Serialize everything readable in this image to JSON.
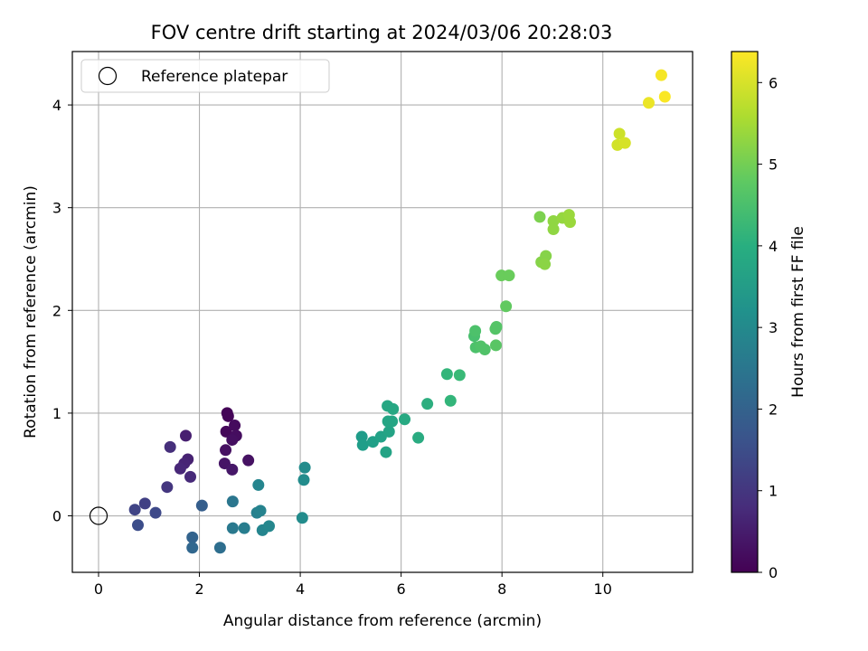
{
  "chart_data": {
    "type": "scatter",
    "title": "FOV centre drift starting at 2024/03/06 20:28:03",
    "xlabel": "Angular distance from reference (arcmin)",
    "ylabel": "Rotation from reference (arcmin)",
    "xlim": [
      -0.52,
      11.78
    ],
    "ylim": [
      -0.55,
      4.52
    ],
    "xticks": [
      0,
      2,
      4,
      6,
      8,
      10
    ],
    "yticks": [
      0,
      1,
      2,
      3,
      4
    ],
    "grid": true,
    "legend": {
      "placement": "top-left",
      "entries": [
        "Reference platepar"
      ]
    },
    "reference_point": {
      "x": 0,
      "y": 0,
      "marker": "open-circle"
    },
    "colorbar": {
      "label": "Hours from first FF file",
      "range": [
        0,
        6.38
      ],
      "ticks": [
        0,
        1,
        2,
        3,
        4,
        5,
        6
      ],
      "colormap": "viridis"
    },
    "points": [
      {
        "x": 2.55,
        "y": 1.0,
        "h": 0.05
      },
      {
        "x": 2.57,
        "y": 0.97,
        "h": 0.08
      },
      {
        "x": 2.53,
        "y": 0.82,
        "h": 0.12
      },
      {
        "x": 2.7,
        "y": 0.88,
        "h": 0.18
      },
      {
        "x": 2.73,
        "y": 0.78,
        "h": 0.22
      },
      {
        "x": 2.65,
        "y": 0.74,
        "h": 0.25
      },
      {
        "x": 2.52,
        "y": 0.64,
        "h": 0.28
      },
      {
        "x": 2.97,
        "y": 0.54,
        "h": 0.3
      },
      {
        "x": 2.5,
        "y": 0.51,
        "h": 0.35
      },
      {
        "x": 2.65,
        "y": 0.45,
        "h": 0.4
      },
      {
        "x": 1.73,
        "y": 0.78,
        "h": 0.55
      },
      {
        "x": 1.77,
        "y": 0.55,
        "h": 0.6
      },
      {
        "x": 1.7,
        "y": 0.51,
        "h": 0.65
      },
      {
        "x": 1.62,
        "y": 0.46,
        "h": 0.7
      },
      {
        "x": 1.82,
        "y": 0.38,
        "h": 0.75
      },
      {
        "x": 1.42,
        "y": 0.67,
        "h": 0.85
      },
      {
        "x": 1.36,
        "y": 0.28,
        "h": 1.0
      },
      {
        "x": 0.92,
        "y": 0.12,
        "h": 1.2
      },
      {
        "x": 0.72,
        "y": 0.06,
        "h": 1.3
      },
      {
        "x": 1.13,
        "y": 0.03,
        "h": 1.4
      },
      {
        "x": 0.78,
        "y": -0.09,
        "h": 1.5
      },
      {
        "x": 2.05,
        "y": 0.1,
        "h": 1.9
      },
      {
        "x": 1.86,
        "y": -0.21,
        "h": 2.0
      },
      {
        "x": 1.86,
        "y": -0.31,
        "h": 2.1
      },
      {
        "x": 2.41,
        "y": -0.31,
        "h": 2.3
      },
      {
        "x": 2.66,
        "y": 0.14,
        "h": 2.5
      },
      {
        "x": 2.66,
        "y": -0.12,
        "h": 2.6
      },
      {
        "x": 2.89,
        "y": -0.12,
        "h": 2.7
      },
      {
        "x": 3.14,
        "y": 0.03,
        "h": 2.8
      },
      {
        "x": 3.21,
        "y": 0.05,
        "h": 2.85
      },
      {
        "x": 3.25,
        "y": -0.14,
        "h": 2.9
      },
      {
        "x": 3.38,
        "y": -0.1,
        "h": 2.95
      },
      {
        "x": 3.17,
        "y": 0.3,
        "h": 2.9
      },
      {
        "x": 4.04,
        "y": -0.02,
        "h": 3.1
      },
      {
        "x": 4.07,
        "y": 0.35,
        "h": 3.1
      },
      {
        "x": 4.09,
        "y": 0.47,
        "h": 3.1
      },
      {
        "x": 5.22,
        "y": 0.77,
        "h": 3.5
      },
      {
        "x": 5.24,
        "y": 0.69,
        "h": 3.55
      },
      {
        "x": 5.44,
        "y": 0.72,
        "h": 3.6
      },
      {
        "x": 5.6,
        "y": 0.77,
        "h": 3.65
      },
      {
        "x": 5.7,
        "y": 0.62,
        "h": 3.7
      },
      {
        "x": 5.76,
        "y": 0.82,
        "h": 3.7
      },
      {
        "x": 5.74,
        "y": 0.92,
        "h": 3.75
      },
      {
        "x": 5.82,
        "y": 0.92,
        "h": 3.75
      },
      {
        "x": 5.73,
        "y": 1.07,
        "h": 3.8
      },
      {
        "x": 5.84,
        "y": 1.04,
        "h": 3.8
      },
      {
        "x": 6.07,
        "y": 0.94,
        "h": 3.85
      },
      {
        "x": 6.34,
        "y": 0.76,
        "h": 3.9
      },
      {
        "x": 6.52,
        "y": 1.09,
        "h": 4.0
      },
      {
        "x": 6.91,
        "y": 1.38,
        "h": 4.2
      },
      {
        "x": 6.98,
        "y": 1.12,
        "h": 4.2
      },
      {
        "x": 7.16,
        "y": 1.37,
        "h": 4.3
      },
      {
        "x": 7.45,
        "y": 1.75,
        "h": 4.5
      },
      {
        "x": 7.47,
        "y": 1.8,
        "h": 4.55
      },
      {
        "x": 7.48,
        "y": 1.64,
        "h": 4.55
      },
      {
        "x": 7.58,
        "y": 1.65,
        "h": 4.6
      },
      {
        "x": 7.66,
        "y": 1.62,
        "h": 4.6
      },
      {
        "x": 7.87,
        "y": 1.82,
        "h": 4.65
      },
      {
        "x": 7.89,
        "y": 1.84,
        "h": 4.65
      },
      {
        "x": 7.88,
        "y": 1.66,
        "h": 4.7
      },
      {
        "x": 8.08,
        "y": 2.04,
        "h": 4.8
      },
      {
        "x": 7.99,
        "y": 2.34,
        "h": 4.9
      },
      {
        "x": 8.14,
        "y": 2.34,
        "h": 4.9
      },
      {
        "x": 8.75,
        "y": 2.91,
        "h": 5.1
      },
      {
        "x": 8.78,
        "y": 2.47,
        "h": 5.2
      },
      {
        "x": 8.87,
        "y": 2.53,
        "h": 5.2
      },
      {
        "x": 8.85,
        "y": 2.45,
        "h": 5.25
      },
      {
        "x": 9.02,
        "y": 2.87,
        "h": 5.3
      },
      {
        "x": 9.02,
        "y": 2.79,
        "h": 5.3
      },
      {
        "x": 9.2,
        "y": 2.9,
        "h": 5.35
      },
      {
        "x": 9.33,
        "y": 2.93,
        "h": 5.4
      },
      {
        "x": 9.35,
        "y": 2.86,
        "h": 5.4
      },
      {
        "x": 10.33,
        "y": 3.72,
        "h": 5.9
      },
      {
        "x": 10.29,
        "y": 3.61,
        "h": 5.95
      },
      {
        "x": 10.44,
        "y": 3.63,
        "h": 6.0
      },
      {
        "x": 10.91,
        "y": 4.02,
        "h": 6.2
      },
      {
        "x": 11.16,
        "y": 4.29,
        "h": 6.3
      },
      {
        "x": 11.23,
        "y": 4.08,
        "h": 6.35
      }
    ]
  }
}
